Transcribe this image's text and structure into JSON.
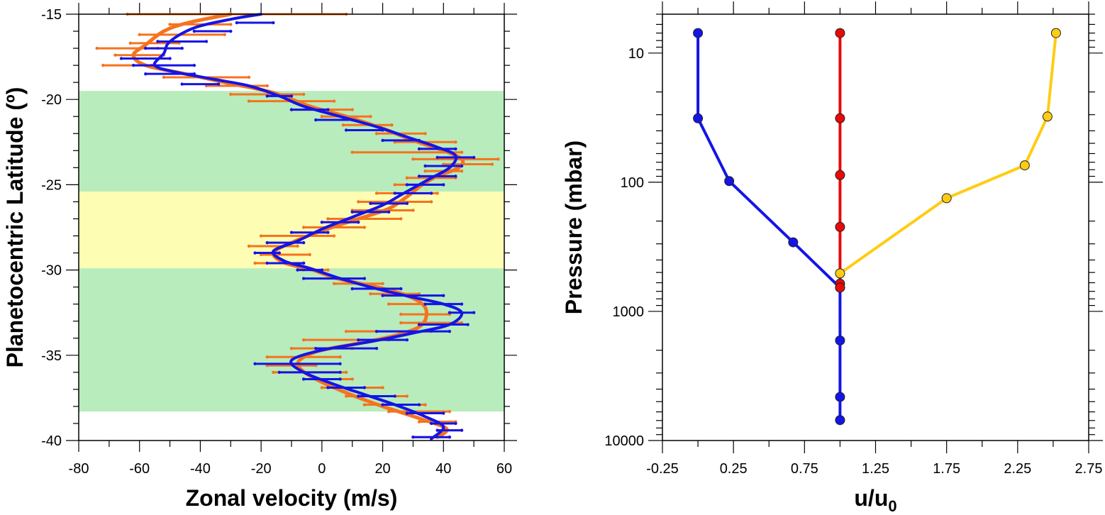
{
  "chart_data": [
    {
      "type": "line",
      "xlabel": "Zonal velocity (m/s)",
      "ylabel": "Planetocentric Latitude (º)",
      "xlim": [
        -80,
        60
      ],
      "ylim": [
        -40,
        -15
      ],
      "x_ticks": [
        "-80",
        "-60",
        "-40",
        "-20",
        "0",
        "20",
        "40",
        "60"
      ],
      "y_ticks": [
        "-15",
        "-20",
        "-25",
        "-30",
        "-35",
        "-40"
      ],
      "bands": [
        {
          "from": -19.5,
          "to": -25.4,
          "color": "#b8ecbc"
        },
        {
          "from": -25.4,
          "to": -29.9,
          "color": "#fdfdb4"
        },
        {
          "from": -29.9,
          "to": -38.3,
          "color": "#b8ecbc"
        }
      ],
      "series": [
        {
          "color": "#f5731e",
          "profile": [
            [
              -30,
              -15.0
            ],
            [
              -44,
              -15.5
            ],
            [
              -52,
              -16.0
            ],
            [
              -58,
              -16.8
            ],
            [
              -62,
              -17.4
            ],
            [
              -58,
              -18.0
            ],
            [
              -45,
              -18.5
            ],
            [
              -32,
              -19.0
            ],
            [
              -16,
              -19.6
            ],
            [
              -4,
              -20.4
            ],
            [
              8,
              -21.0
            ],
            [
              20,
              -21.7
            ],
            [
              30,
              -22.4
            ],
            [
              40,
              -23.0
            ],
            [
              46,
              -23.5
            ],
            [
              45,
              -24.0
            ],
            [
              38,
              -24.5
            ],
            [
              33,
              -25.0
            ],
            [
              28,
              -25.7
            ],
            [
              22,
              -26.4
            ],
            [
              12,
              -27.0
            ],
            [
              0,
              -27.7
            ],
            [
              -10,
              -28.4
            ],
            [
              -16,
              -29.0
            ],
            [
              -12,
              -29.6
            ],
            [
              -3,
              -30.0
            ],
            [
              5,
              -30.5
            ],
            [
              18,
              -31.0
            ],
            [
              28,
              -31.5
            ],
            [
              34,
              -32.2
            ],
            [
              33,
              -33.2
            ],
            [
              25,
              -33.8
            ],
            [
              12,
              -34.3
            ],
            [
              -2,
              -34.8
            ],
            [
              -8,
              -35.5
            ],
            [
              -3,
              -36.3
            ],
            [
              8,
              -37.2
            ],
            [
              20,
              -38.0
            ],
            [
              32,
              -38.7
            ],
            [
              41,
              -39.3
            ],
            [
              38,
              -39.8
            ]
          ],
          "points": [
            [
              -28,
              -15.0,
              36
            ],
            [
              -40,
              -15.6,
              10
            ],
            [
              -46,
              -16.2,
              14
            ],
            [
              -55,
              -16.7,
              8
            ],
            [
              -64,
              -17.0,
              10
            ],
            [
              -60,
              -17.4,
              8
            ],
            [
              -64,
              -18.0,
              8
            ],
            [
              -38,
              -18.7,
              14
            ],
            [
              -28,
              -19.2,
              10
            ],
            [
              -18,
              -19.7,
              12
            ],
            [
              -10,
              -20.1,
              14
            ],
            [
              0,
              -20.6,
              10
            ],
            [
              8,
              -21.0,
              8
            ],
            [
              15,
              -21.5,
              8
            ],
            [
              26,
              -22.0,
              8
            ],
            [
              34,
              -22.5,
              10
            ],
            [
              28,
              -23.1,
              18
            ],
            [
              44,
              -23.5,
              14
            ],
            [
              48,
              -23.8,
              8
            ],
            [
              40,
              -24.2,
              6
            ],
            [
              36,
              -24.6,
              8
            ],
            [
              32,
              -25.0,
              8
            ],
            [
              28,
              -25.5,
              10
            ],
            [
              24,
              -26.0,
              12
            ],
            [
              20,
              -26.5,
              10
            ],
            [
              14,
              -27.0,
              12
            ],
            [
              4,
              -27.5,
              10
            ],
            [
              -8,
              -28.0,
              12
            ],
            [
              -16,
              -28.6,
              8
            ],
            [
              -12,
              -29.1,
              8
            ],
            [
              -14,
              -29.6,
              8
            ],
            [
              -2,
              -30.0,
              4
            ],
            [
              12,
              -30.8,
              8
            ],
            [
              24,
              -31.4,
              8
            ],
            [
              32,
              -32.0,
              10
            ],
            [
              34,
              -32.6,
              8
            ],
            [
              36,
              -33.1,
              10
            ],
            [
              22,
              -33.6,
              14
            ],
            [
              8,
              -34.1,
              14
            ],
            [
              0,
              -34.6,
              10
            ],
            [
              -6,
              -35.1,
              12
            ],
            [
              -10,
              -35.6,
              8
            ],
            [
              -4,
              -36.0,
              12
            ],
            [
              2,
              -36.4,
              8
            ],
            [
              10,
              -36.9,
              10
            ],
            [
              18,
              -37.4,
              10
            ],
            [
              24,
              -37.9,
              10
            ],
            [
              32,
              -38.3,
              10
            ],
            [
              38,
              -38.9,
              6
            ],
            [
              42,
              -39.4,
              4
            ],
            [
              36,
              -39.8,
              6
            ]
          ]
        },
        {
          "color": "#1414e6",
          "profile": [
            [
              -20,
              -15.0
            ],
            [
              -30,
              -15.3
            ],
            [
              -42,
              -15.8
            ],
            [
              -50,
              -16.6
            ],
            [
              -52,
              -17.3
            ],
            [
              -55,
              -18.0
            ],
            [
              -48,
              -18.4
            ],
            [
              -36,
              -18.8
            ],
            [
              -24,
              -19.2
            ],
            [
              -14,
              -19.8
            ],
            [
              -6,
              -20.4
            ],
            [
              6,
              -21.0
            ],
            [
              18,
              -21.6
            ],
            [
              28,
              -22.2
            ],
            [
              38,
              -22.8
            ],
            [
              44,
              -23.3
            ],
            [
              42,
              -24.0
            ],
            [
              36,
              -24.6
            ],
            [
              32,
              -25.0
            ],
            [
              26,
              -25.6
            ],
            [
              20,
              -26.2
            ],
            [
              10,
              -26.9
            ],
            [
              0,
              -27.6
            ],
            [
              -8,
              -28.3
            ],
            [
              -16,
              -28.9
            ],
            [
              -12,
              -29.5
            ],
            [
              -4,
              -29.9
            ],
            [
              6,
              -30.5
            ],
            [
              18,
              -31.1
            ],
            [
              30,
              -31.6
            ],
            [
              40,
              -32.0
            ],
            [
              46,
              -32.5
            ],
            [
              42,
              -33.2
            ],
            [
              30,
              -33.7
            ],
            [
              16,
              -34.2
            ],
            [
              0,
              -34.7
            ],
            [
              -10,
              -35.3
            ],
            [
              -6,
              -36.0
            ],
            [
              4,
              -36.7
            ],
            [
              14,
              -37.3
            ],
            [
              24,
              -37.9
            ],
            [
              34,
              -38.6
            ],
            [
              40,
              -39.2
            ],
            [
              36,
              -39.9
            ]
          ],
          "points": [
            [
              -22,
              -15.5,
              6
            ],
            [
              -36,
              -16.0,
              6
            ],
            [
              -46,
              -16.6,
              8
            ],
            [
              -52,
              -17.0,
              6
            ],
            [
              -58,
              -17.6,
              8
            ],
            [
              -52,
              -18.0,
              10
            ],
            [
              -50,
              -18.5,
              8
            ],
            [
              -40,
              -19.1,
              6
            ],
            [
              -14,
              -19.8,
              4
            ],
            [
              -4,
              -20.6,
              6
            ],
            [
              4,
              -21.2,
              6
            ],
            [
              14,
              -21.8,
              6
            ],
            [
              26,
              -22.4,
              6
            ],
            [
              38,
              -22.9,
              6
            ],
            [
              44,
              -23.4,
              6
            ],
            [
              40,
              -23.9,
              6
            ],
            [
              38,
              -24.5,
              6
            ],
            [
              34,
              -25.0,
              6
            ],
            [
              30,
              -25.5,
              6
            ],
            [
              22,
              -26.1,
              6
            ],
            [
              16,
              -26.6,
              6
            ],
            [
              6,
              -27.2,
              6
            ],
            [
              -4,
              -27.8,
              6
            ],
            [
              -12,
              -28.4,
              6
            ],
            [
              -18,
              -29.0,
              4
            ],
            [
              -12,
              -29.6,
              6
            ],
            [
              -4,
              -30.0,
              4
            ],
            [
              4,
              -30.5,
              10
            ],
            [
              18,
              -31.1,
              8
            ],
            [
              30,
              -31.5,
              10
            ],
            [
              40,
              -32.0,
              6
            ],
            [
              46,
              -32.5,
              4
            ],
            [
              40,
              -33.2,
              8
            ],
            [
              30,
              -33.6,
              12
            ],
            [
              20,
              -34.1,
              8
            ],
            [
              8,
              -34.6,
              10
            ],
            [
              -8,
              -35.5,
              14
            ],
            [
              -4,
              -36.0,
              10
            ],
            [
              0,
              -36.4,
              6
            ],
            [
              8,
              -36.9,
              6
            ],
            [
              18,
              -37.4,
              6
            ],
            [
              26,
              -37.9,
              6
            ],
            [
              34,
              -38.4,
              6
            ],
            [
              40,
              -39.0,
              4
            ],
            [
              42,
              -39.4,
              4
            ],
            [
              36,
              -39.8,
              6
            ]
          ]
        }
      ]
    },
    {
      "type": "line",
      "xlabel": "u/u",
      "xlabel_sub": "0",
      "ylabel": "Pressure (mbar)",
      "xlim": [
        -0.25,
        2.75
      ],
      "ylim": [
        10000,
        5
      ],
      "y_scale": "log",
      "x_ticks": [
        "-0.25",
        "0.25",
        "0.75",
        "1.25",
        "1.75",
        "2.25",
        "2.75"
      ],
      "y_ticks": [
        "10",
        "100",
        "1000",
        "10000"
      ],
      "series": [
        {
          "color": "#1414e6",
          "points": [
            [
              0,
              7
            ],
            [
              0,
              32
            ],
            [
              0.22,
              98
            ],
            [
              0.67,
              292
            ],
            [
              1,
              655
            ],
            [
              1,
              1680
            ],
            [
              1,
              4600
            ],
            [
              1,
              6950
            ]
          ]
        },
        {
          "color": "#e60a0a",
          "points": [
            [
              1,
              7
            ],
            [
              1,
              32
            ],
            [
              1,
              88
            ],
            [
              1,
              222
            ],
            [
              1,
              610
            ],
            [
              1,
              654
            ]
          ]
        },
        {
          "color": "#ffcc14",
          "points": [
            [
              2.52,
              7
            ],
            [
              2.46,
              31
            ],
            [
              2.3,
              74
            ],
            [
              1.75,
              133
            ],
            [
              1,
              508
            ]
          ]
        }
      ]
    }
  ]
}
